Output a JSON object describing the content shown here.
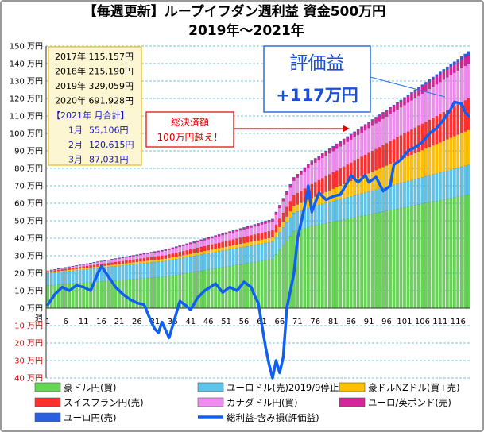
{
  "title": "【毎週更新】ループイフダン週利益 資金500万円",
  "subtitle": "2019年～2021年",
  "info_box": {
    "years": [
      {
        "label": "2017年",
        "value": "115,157円"
      },
      {
        "label": "2018年",
        "value": "215,190円"
      },
      {
        "label": "2019年",
        "value": "329,059円"
      },
      {
        "label": "2020年",
        "value": "691,928円"
      }
    ],
    "month_header": "【2021年 月合計】",
    "months": [
      {
        "label": "1月",
        "value": "55,106円"
      },
      {
        "label": "2月",
        "value": "120,615円"
      },
      {
        "label": "3月",
        "value": "87,031円"
      }
    ]
  },
  "callouts": {
    "realized_line1": "総決済額",
    "realized_line2": "100万円越え！",
    "unrealized_line1": "評価益",
    "unrealized_line2": "+117万円"
  },
  "colors": {
    "aud": "#66d455",
    "eur_usd": "#5ec3e8",
    "aud_nzd": "#ffc000",
    "chf": "#ff3030",
    "cad": "#f08cf0",
    "eur_gbp": "#d6249a",
    "eur_jpy": "#2a5fe0",
    "total_line": "#1060ef",
    "negative_tick": "#e00000"
  },
  "chart_data": {
    "type": "bar",
    "stacked": true,
    "x_axis_label": "週",
    "x_tick_labels": [
      "1",
      "6",
      "11",
      "16",
      "21",
      "26",
      "31",
      "36",
      "41",
      "46",
      "51",
      "56",
      "61",
      "66",
      "71",
      "76",
      "81",
      "86",
      "91",
      "96",
      "101",
      "106",
      "111",
      "116"
    ],
    "y_tick_labels": [
      "150 万円",
      "140 万円",
      "130 万円",
      "120 万円",
      "110 万円",
      "100 万円",
      "90 万円",
      "80 万円",
      "70 万円",
      "60 万円",
      "50 万円",
      "40 万円",
      "30 万円",
      "20 万円",
      "10 万円",
      "0 万円",
      "10 万円",
      "20 万円",
      "30 万円",
      "40 万円"
    ],
    "y_negative_from_index": 16,
    "ylim": [
      -40,
      150
    ],
    "y_unit": "万円",
    "grid": true,
    "legend_position": "bottom",
    "weeks": 119,
    "series": [
      {
        "name": "豪ドル円(買)",
        "key": "aud",
        "start": 13,
        "end": 65,
        "points": [
          [
            1,
            13
          ],
          [
            34,
            18
          ],
          [
            64,
            28
          ],
          [
            70,
            44
          ],
          [
            75,
            47
          ],
          [
            119,
            65
          ]
        ]
      },
      {
        "name": "ユーロドル(売)2019/9停止",
        "key": "eur_usd",
        "start": 7,
        "end": 17,
        "points": [
          [
            1,
            7
          ],
          [
            34,
            9
          ],
          [
            64,
            10
          ],
          [
            75,
            11
          ],
          [
            119,
            17
          ]
        ]
      },
      {
        "name": "豪ドルNZドル(買+売)",
        "key": "aud_nzd",
        "start": 0.5,
        "end": 20,
        "points": [
          [
            1,
            0.5
          ],
          [
            40,
            1.5
          ],
          [
            64,
            2.5
          ],
          [
            75,
            5
          ],
          [
            119,
            20
          ]
        ]
      },
      {
        "name": "スイスフラン円(売)",
        "key": "chf",
        "start": 0.5,
        "end": 18,
        "points": [
          [
            1,
            0.5
          ],
          [
            34,
            2
          ],
          [
            64,
            4
          ],
          [
            75,
            8
          ],
          [
            119,
            18
          ]
        ]
      },
      {
        "name": "カナダドル円(買)",
        "key": "cad",
        "start": 0.5,
        "end": 20,
        "points": [
          [
            1,
            0.5
          ],
          [
            34,
            2.5
          ],
          [
            64,
            5
          ],
          [
            75,
            11
          ],
          [
            119,
            20
          ]
        ]
      },
      {
        "name": "ユーロ/英ポンド(売)",
        "key": "eur_gbp",
        "start": 0,
        "end": 5,
        "points": [
          [
            1,
            0
          ],
          [
            60,
            1
          ],
          [
            75,
            2
          ],
          [
            119,
            5
          ]
        ]
      },
      {
        "name": "ユーロ円(売)",
        "key": "eur_jpy",
        "start": 0,
        "end": 2,
        "points": [
          [
            1,
            0
          ],
          [
            100,
            0.5
          ],
          [
            119,
            2
          ]
        ]
      }
    ],
    "line_series": {
      "name": "総利益-含み損(評価益)",
      "key": "total_line",
      "points": [
        [
          1,
          2
        ],
        [
          3,
          8
        ],
        [
          5,
          12
        ],
        [
          7,
          10
        ],
        [
          9,
          13
        ],
        [
          11,
          12
        ],
        [
          13,
          10
        ],
        [
          15,
          20
        ],
        [
          16,
          24
        ],
        [
          18,
          18
        ],
        [
          20,
          12
        ],
        [
          22,
          8
        ],
        [
          24,
          5
        ],
        [
          26,
          3
        ],
        [
          28,
          2
        ],
        [
          30,
          -8
        ],
        [
          31,
          -12
        ],
        [
          32,
          -14
        ],
        [
          33,
          -8
        ],
        [
          35,
          -17
        ],
        [
          37,
          -3
        ],
        [
          38,
          4
        ],
        [
          40,
          1
        ],
        [
          41,
          -1
        ],
        [
          43,
          6
        ],
        [
          45,
          10
        ],
        [
          48,
          14
        ],
        [
          50,
          9
        ],
        [
          52,
          12
        ],
        [
          54,
          10
        ],
        [
          56,
          15
        ],
        [
          58,
          12
        ],
        [
          59,
          7
        ],
        [
          60,
          3
        ],
        [
          62,
          -22
        ],
        [
          63,
          -32
        ],
        [
          64,
          -40
        ],
        [
          65,
          -30
        ],
        [
          66,
          -37
        ],
        [
          67,
          -28
        ],
        [
          68,
          0
        ],
        [
          69,
          10
        ],
        [
          70,
          20
        ],
        [
          71,
          40
        ],
        [
          73,
          58
        ],
        [
          74,
          70
        ],
        [
          75,
          55
        ],
        [
          77,
          66
        ],
        [
          79,
          62
        ],
        [
          81,
          64
        ],
        [
          83,
          65
        ],
        [
          85,
          72
        ],
        [
          86,
          76
        ],
        [
          88,
          72
        ],
        [
          90,
          76
        ],
        [
          91,
          72
        ],
        [
          93,
          75
        ],
        [
          95,
          67
        ],
        [
          97,
          70
        ],
        [
          98,
          82
        ],
        [
          100,
          85
        ],
        [
          102,
          90
        ],
        [
          104,
          92
        ],
        [
          106,
          95
        ],
        [
          108,
          100
        ],
        [
          110,
          103
        ],
        [
          112,
          108
        ],
        [
          114,
          114
        ],
        [
          115,
          118
        ],
        [
          117,
          117
        ],
        [
          118,
          112
        ],
        [
          119,
          110
        ]
      ]
    }
  }
}
